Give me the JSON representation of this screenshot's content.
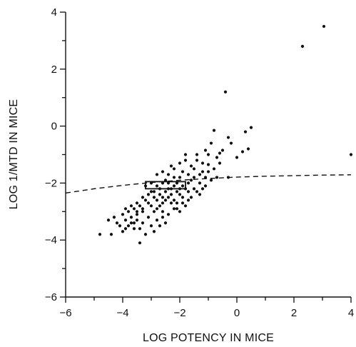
{
  "chart_data": {
    "type": "scatter",
    "title": "",
    "xlabel": "LOG POTENCY IN MICE",
    "ylabel": "LOG 1/MTD IN MICE",
    "xlim": [
      -6,
      4
    ],
    "ylim": [
      -6,
      4
    ],
    "x_ticks": [
      -6,
      -4,
      -2,
      0,
      2,
      4
    ],
    "y_ticks": [
      -6,
      -4,
      -2,
      0,
      2,
      4
    ],
    "x_tick_labels": [
      "−6",
      "−4",
      "−2",
      "0",
      "2",
      "4"
    ],
    "y_tick_labels": [
      "−6",
      "−4",
      "−2",
      "0",
      "2",
      "4"
    ],
    "grid": false,
    "legend": "none",
    "marker_color": "#111111",
    "series": [
      {
        "points": [
          [
            2.3,
            2.8
          ],
          [
            3.05,
            3.5
          ],
          [
            -0.4,
            1.2
          ],
          [
            4.0,
            -1.0
          ],
          [
            0.5,
            -0.05
          ],
          [
            0.3,
            -0.2
          ],
          [
            -0.8,
            -0.15
          ],
          [
            0.4,
            -0.8
          ],
          [
            0.2,
            -0.9
          ],
          [
            -0.2,
            -0.6
          ],
          [
            -0.3,
            -1.8
          ],
          [
            -0.7,
            -1.1
          ],
          [
            -1.0,
            -1.35
          ],
          [
            -0.5,
            -0.85
          ],
          [
            -0.6,
            -0.95
          ],
          [
            -0.9,
            -0.6
          ],
          [
            -1.1,
            -0.85
          ],
          [
            -0.3,
            -0.4
          ],
          [
            0.0,
            -1.1
          ],
          [
            -1.4,
            -1.2
          ],
          [
            -1.2,
            -1.6
          ],
          [
            -1.6,
            -1.9
          ],
          [
            -1.3,
            -2.0
          ],
          [
            -1.5,
            -1.5
          ],
          [
            -1.8,
            -1.2
          ],
          [
            -1.7,
            -1.7
          ],
          [
            -1.9,
            -1.6
          ],
          [
            -2.0,
            -1.8
          ],
          [
            -2.1,
            -2.0
          ],
          [
            -2.3,
            -1.4
          ],
          [
            -2.2,
            -1.8
          ],
          [
            -2.5,
            -1.9
          ],
          [
            -2.4,
            -2.2
          ],
          [
            -2.6,
            -2.0
          ],
          [
            -2.7,
            -2.4
          ],
          [
            -2.8,
            -2.1
          ],
          [
            -2.9,
            -2.5
          ],
          [
            -3.0,
            -2.3
          ],
          [
            -3.1,
            -2.7
          ],
          [
            -3.2,
            -2.6
          ],
          [
            -3.3,
            -2.9
          ],
          [
            -3.4,
            -2.8
          ],
          [
            -3.5,
            -3.0
          ],
          [
            -3.6,
            -2.9
          ],
          [
            -3.7,
            -3.2
          ],
          [
            -3.8,
            -3.0
          ],
          [
            -3.9,
            -3.3
          ],
          [
            -4.0,
            -3.1
          ],
          [
            -4.1,
            -3.5
          ],
          [
            -4.2,
            -3.4
          ],
          [
            -3.6,
            -3.6
          ],
          [
            -3.5,
            -3.3
          ],
          [
            -3.3,
            -3.4
          ],
          [
            -3.1,
            -3.2
          ],
          [
            -2.9,
            -3.0
          ],
          [
            -2.7,
            -2.8
          ],
          [
            -2.5,
            -2.6
          ],
          [
            -2.3,
            -2.4
          ],
          [
            -2.1,
            -2.7
          ],
          [
            -1.9,
            -2.5
          ],
          [
            -1.7,
            -2.3
          ],
          [
            -1.5,
            -2.2
          ],
          [
            -1.3,
            -2.4
          ],
          [
            -1.8,
            -2.8
          ],
          [
            -2.0,
            -3.0
          ],
          [
            -2.2,
            -2.9
          ],
          [
            -2.4,
            -3.1
          ],
          [
            -2.6,
            -3.2
          ],
          [
            -2.8,
            -3.3
          ],
          [
            -3.0,
            -3.5
          ],
          [
            -3.2,
            -3.8
          ],
          [
            -3.4,
            -3.6
          ],
          [
            -3.6,
            -3.4
          ],
          [
            -3.9,
            -3.6
          ],
          [
            -4.3,
            -3.2
          ],
          [
            -4.5,
            -3.3
          ],
          [
            -4.8,
            -3.8
          ],
          [
            -4.4,
            -3.8
          ],
          [
            -3.4,
            -4.1
          ],
          [
            -2.8,
            -1.7
          ],
          [
            -2.6,
            -1.6
          ],
          [
            -2.4,
            -1.7
          ],
          [
            -2.2,
            -1.5
          ],
          [
            -2.0,
            -1.3
          ],
          [
            -1.8,
            -1.0
          ],
          [
            -1.6,
            -1.4
          ],
          [
            -1.4,
            -1.0
          ],
          [
            -1.2,
            -1.3
          ],
          [
            -1.0,
            -1.0
          ],
          [
            -0.8,
            -1.5
          ],
          [
            -0.6,
            -1.3
          ],
          [
            -0.9,
            -1.9
          ],
          [
            -1.1,
            -2.1
          ],
          [
            -1.3,
            -1.7
          ],
          [
            -1.5,
            -1.8
          ],
          [
            -1.7,
            -2.0
          ],
          [
            -1.9,
            -2.1
          ],
          [
            -2.1,
            -2.3
          ],
          [
            -2.3,
            -2.2
          ],
          [
            -2.5,
            -2.3
          ],
          [
            -2.7,
            -2.2
          ],
          [
            -2.9,
            -2.3
          ],
          [
            -3.1,
            -2.4
          ],
          [
            -3.3,
            -2.5
          ],
          [
            -3.5,
            -2.7
          ],
          [
            -3.7,
            -2.8
          ],
          [
            -3.9,
            -2.9
          ],
          [
            -3.2,
            -2.1
          ],
          [
            -3.0,
            -2.0
          ],
          [
            -2.8,
            -2.6
          ],
          [
            -2.6,
            -2.7
          ],
          [
            -2.4,
            -2.5
          ],
          [
            -2.2,
            -2.6
          ],
          [
            -2.0,
            -2.4
          ],
          [
            -1.8,
            -2.2
          ],
          [
            -1.6,
            -2.5
          ],
          [
            -1.4,
            -2.3
          ],
          [
            -1.2,
            -2.2
          ],
          [
            -2.5,
            -3.4
          ],
          [
            -2.7,
            -3.5
          ],
          [
            -2.9,
            -3.7
          ],
          [
            -3.3,
            -3.0
          ],
          [
            -3.5,
            -3.1
          ],
          [
            -3.7,
            -3.4
          ],
          [
            -3.8,
            -3.5
          ],
          [
            -4.0,
            -3.7
          ],
          [
            -2.3,
            -2.7
          ],
          [
            -2.1,
            -2.9
          ],
          [
            -1.9,
            -2.7
          ],
          [
            -1.7,
            -2.6
          ],
          [
            -3.0,
            -2.8
          ],
          [
            -2.8,
            -2.9
          ],
          [
            -2.6,
            -3.0
          ],
          [
            -1.1,
            -1.8
          ],
          [
            -0.7,
            -1.8
          ],
          [
            -1.0,
            -1.6
          ],
          [
            -2.2,
            -2.1
          ],
          [
            -2.0,
            -2.2
          ],
          [
            -2.4,
            -2.0
          ],
          [
            -2.6,
            -2.5
          ]
        ]
      }
    ],
    "box": {
      "x": [
        -3.2,
        -1.8
      ],
      "y": [
        -2.2,
        -1.95
      ]
    },
    "dashed_curve": {
      "x": [
        -6,
        -5,
        -4,
        -3,
        -2,
        -1,
        0,
        1,
        2,
        3,
        4
      ],
      "y": [
        -2.35,
        -2.2,
        -2.08,
        -1.98,
        -1.9,
        -1.84,
        -1.79,
        -1.76,
        -1.74,
        -1.72,
        -1.71
      ]
    }
  }
}
